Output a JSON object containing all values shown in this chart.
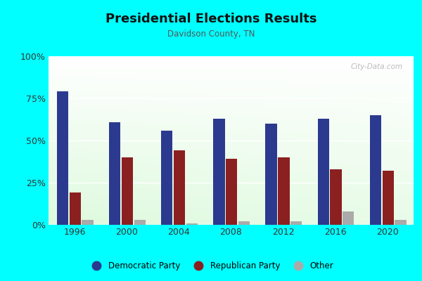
{
  "title": "Presidential Elections Results",
  "subtitle": "Davidson County, TN",
  "years": [
    1996,
    2000,
    2004,
    2008,
    2012,
    2016,
    2020
  ],
  "democratic": [
    79,
    61,
    56,
    63,
    60,
    63,
    65
  ],
  "republican": [
    19,
    40,
    44,
    39,
    40,
    33,
    32
  ],
  "other": [
    3,
    3,
    1,
    2,
    2,
    8,
    3
  ],
  "dem_color": "#2B3A8F",
  "rep_color": "#8B2020",
  "other_color": "#AAAAAA",
  "bg_outer": "#00FFFF",
  "yticks": [
    0,
    25,
    50,
    75,
    100
  ],
  "ylabels": [
    "0%",
    "25%",
    "50%",
    "75%",
    "100%"
  ],
  "watermark": "City-Data.com",
  "legend_labels": [
    "Democratic Party",
    "Republican Party",
    "Other"
  ]
}
